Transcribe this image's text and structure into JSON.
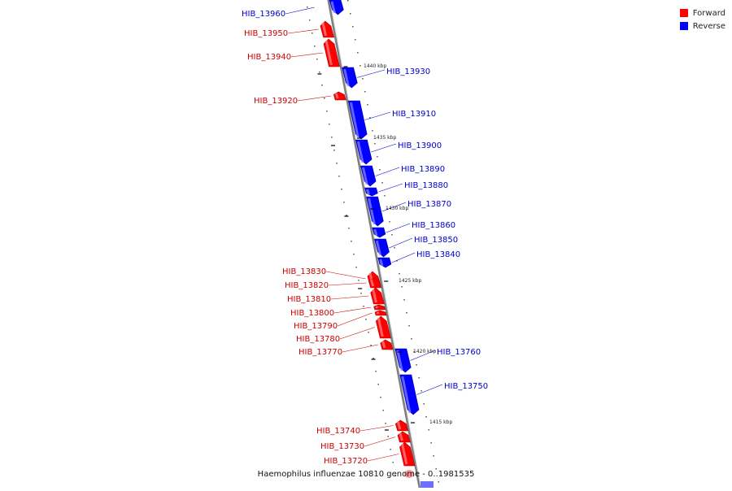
{
  "legend": {
    "forward_label": "Forward",
    "reverse_label": "Reverse",
    "forward_color": "#ff0000",
    "reverse_color": "#0000ff"
  },
  "caption": "Haemophilus influenzae 10810 genome - 0..1981535",
  "line_color": "#7f7f7f",
  "genes": [
    {
      "name": "HIB_13960",
      "strand": "reverse"
    },
    {
      "name": "HIB_13950",
      "strand": "forward"
    },
    {
      "name": "HIB_13940",
      "strand": "forward"
    },
    {
      "name": "HIB_13930",
      "strand": "reverse"
    },
    {
      "name": "HIB_13920",
      "strand": "forward"
    },
    {
      "name": "HIB_13910",
      "strand": "reverse"
    },
    {
      "name": "HIB_13900",
      "strand": "reverse"
    },
    {
      "name": "HIB_13890",
      "strand": "reverse"
    },
    {
      "name": "HIB_13880",
      "strand": "reverse"
    },
    {
      "name": "HIB_13870",
      "strand": "reverse"
    },
    {
      "name": "HIB_13860",
      "strand": "reverse"
    },
    {
      "name": "HIB_13850",
      "strand": "reverse"
    },
    {
      "name": "HIB_13840",
      "strand": "reverse"
    },
    {
      "name": "HIB_13830",
      "strand": "forward"
    },
    {
      "name": "HIB_13820",
      "strand": "forward"
    },
    {
      "name": "HIB_13810",
      "strand": "forward"
    },
    {
      "name": "HIB_13800",
      "strand": "forward"
    },
    {
      "name": "HIB_13790",
      "strand": "forward"
    },
    {
      "name": "HIB_13780",
      "strand": "forward"
    },
    {
      "name": "HIB_13770",
      "strand": "forward"
    },
    {
      "name": "HIB_13760",
      "strand": "reverse"
    },
    {
      "name": "HIB_13750",
      "strand": "reverse"
    },
    {
      "name": "HIB_13740",
      "strand": "forward"
    },
    {
      "name": "HIB_13730",
      "strand": "forward"
    },
    {
      "name": "HIB_13720",
      "strand": "forward"
    }
  ],
  "ticks": [
    "1440 kbp",
    "1435 kbp",
    "1430 kbp",
    "1425 kbp",
    "1420 kbp",
    "1415 kbp"
  ]
}
